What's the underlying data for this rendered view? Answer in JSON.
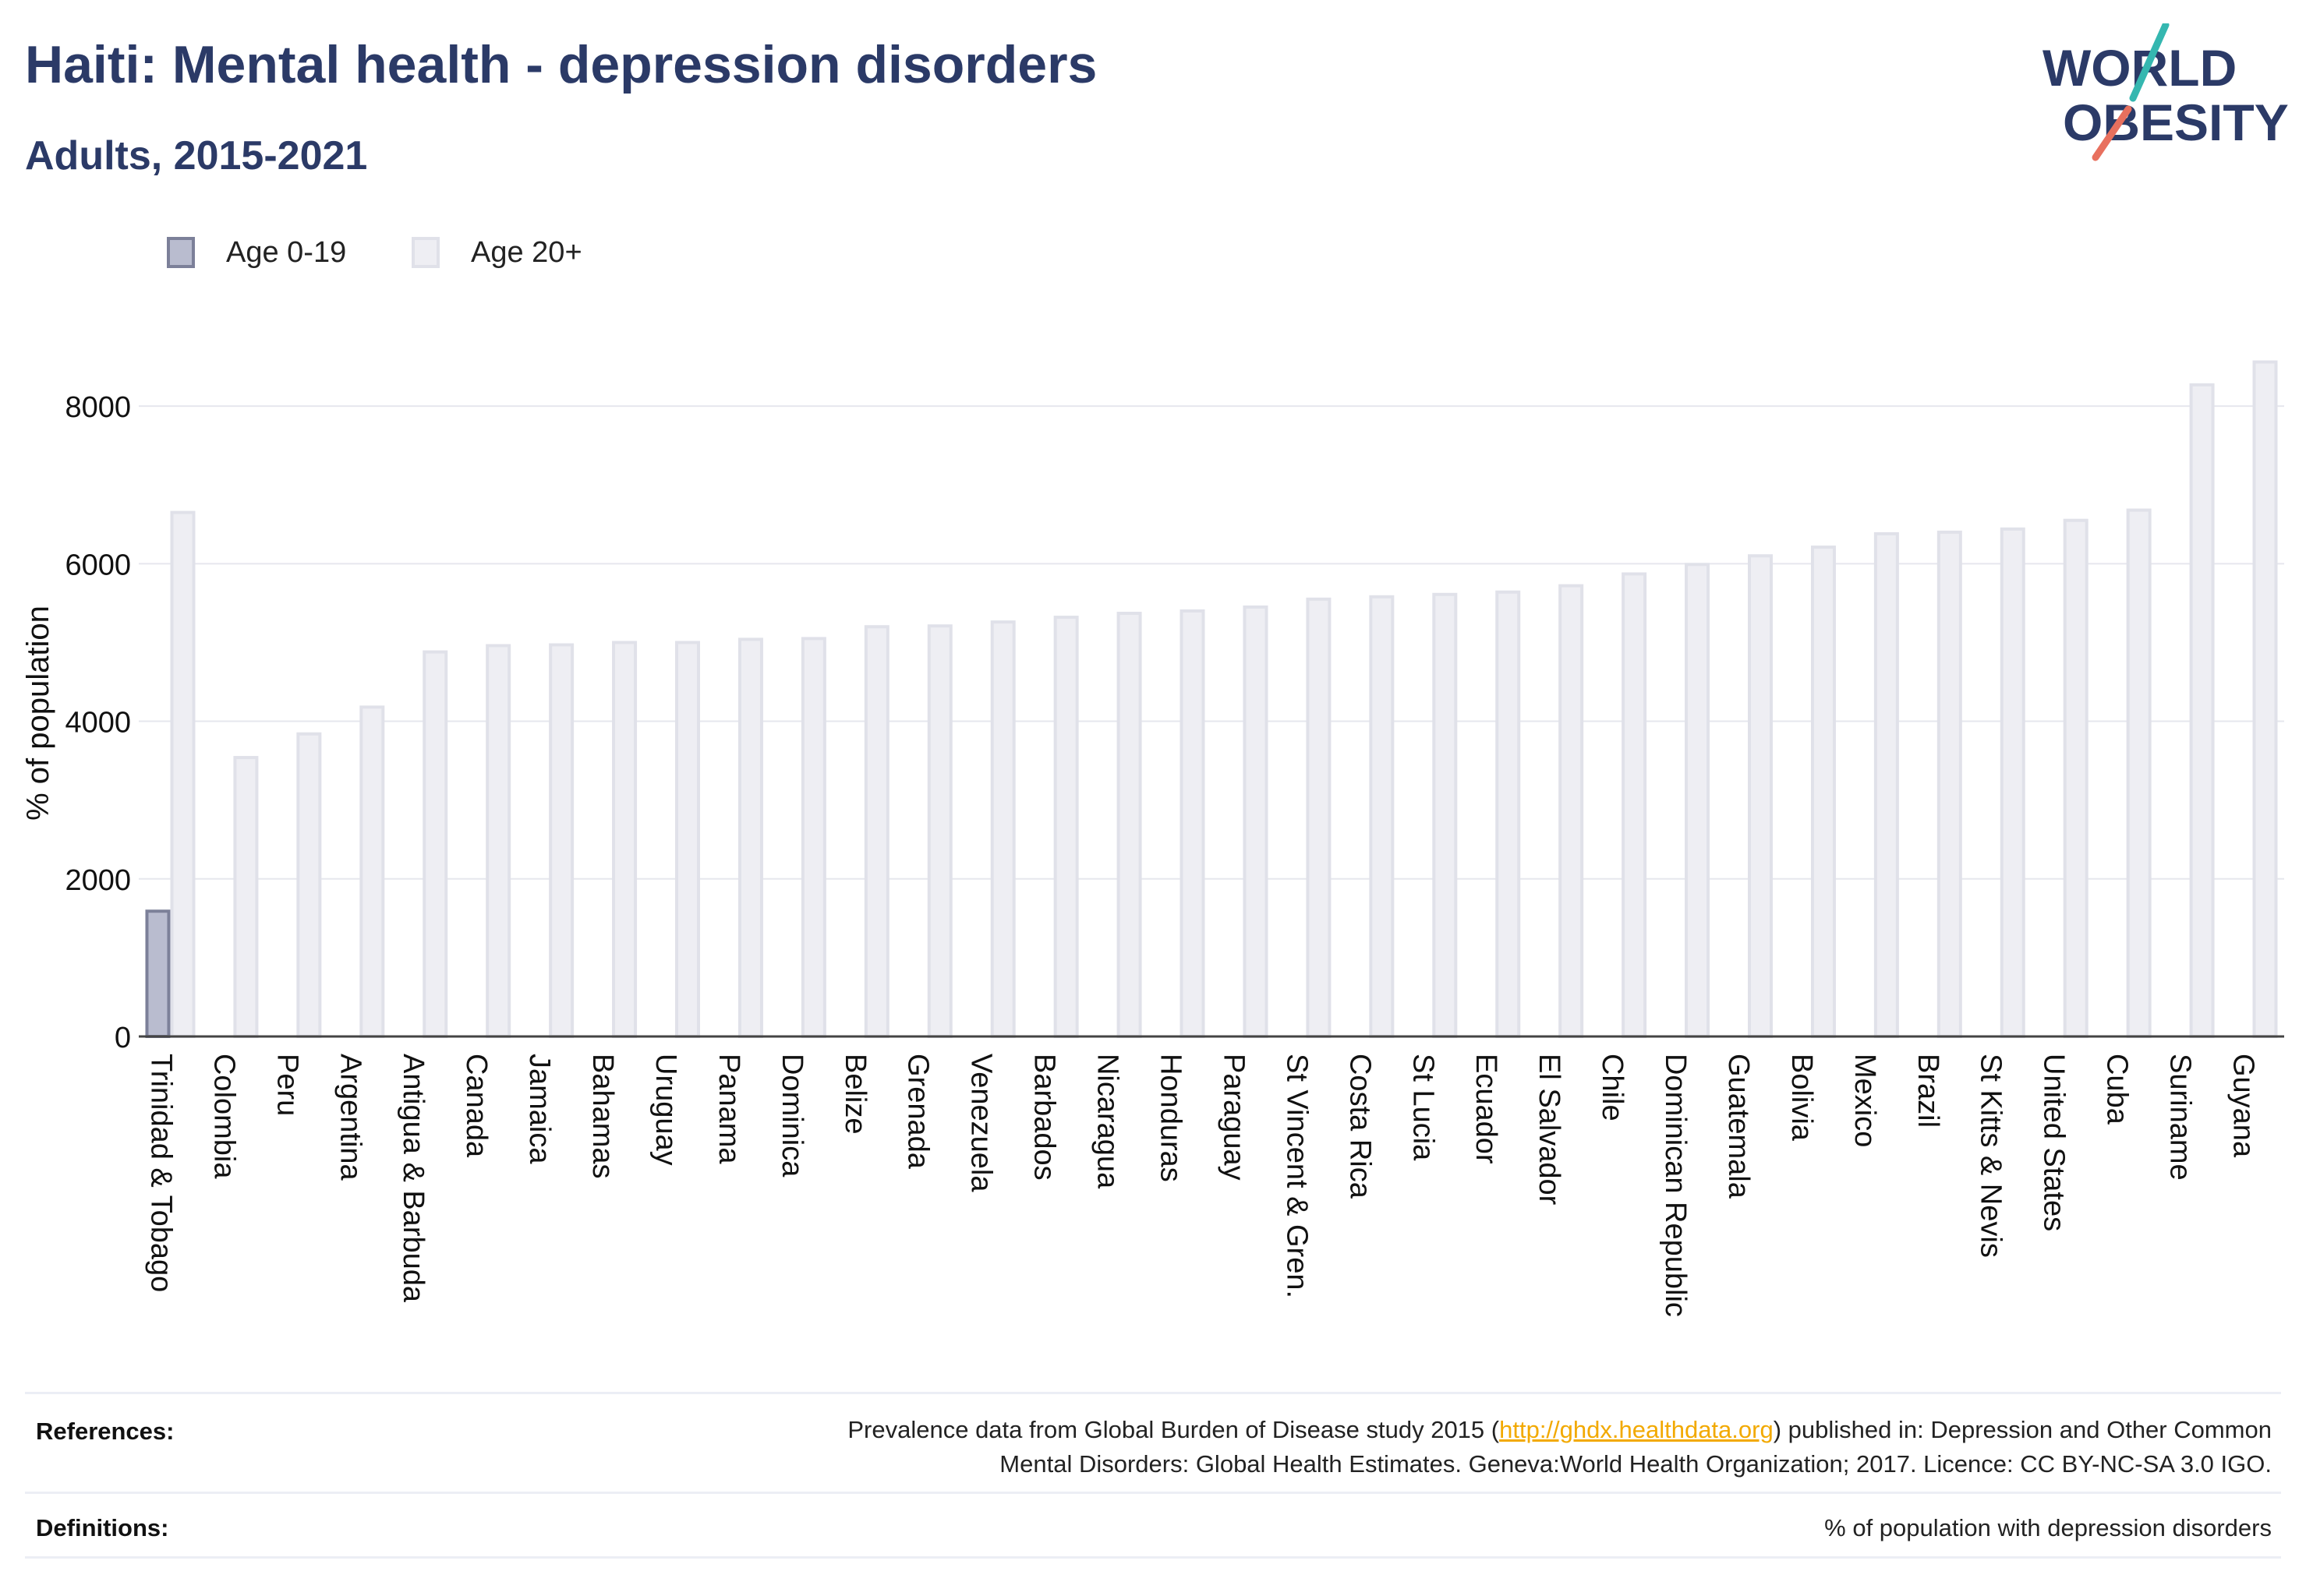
{
  "title": "Haiti: Mental health - depression disorders",
  "subtitle": "Adults, 2015-2021",
  "logo": {
    "line1": "WORLD",
    "line2": "OBESITY",
    "color": "#2b3a67",
    "accent1": "#35b7b0",
    "accent2": "#e8705e"
  },
  "legend": [
    {
      "label": "Age 0-19",
      "fill": "#b9bccf",
      "stroke": "#7c8099"
    },
    {
      "label": "Age 20+",
      "fill": "#eeeef3",
      "stroke": "#e0e1e9"
    }
  ],
  "chart_data": {
    "type": "bar",
    "ylabel": "% of population",
    "xlabel": "",
    "ylim": [
      0,
      9000
    ],
    "yticks": [
      0,
      2000,
      4000,
      6000,
      8000
    ],
    "grid": true,
    "legend_position": "top-left",
    "categories": [
      "Trinidad & Tobago",
      "Colombia",
      "Peru",
      "Argentina",
      "Antigua & Barbuda",
      "Canada",
      "Jamaica",
      "Bahamas",
      "Uruguay",
      "Panama",
      "Dominica",
      "Belize",
      "Grenada",
      "Venezuela",
      "Barbados",
      "Nicaragua",
      "Honduras",
      "Paraguay",
      "St Vincent & Gren.",
      "Costa Rica",
      "St Lucia",
      "Ecuador",
      "El Salvador",
      "Chile",
      "Dominican Republic",
      "Guatemala",
      "Bolivia",
      "Mexico",
      "Brazil",
      "St Kitts & Nevis",
      "United States",
      "Cuba",
      "Suriname",
      "Guyana"
    ],
    "series": [
      {
        "name": "Age 0-19",
        "values": [
          1590,
          null,
          null,
          null,
          null,
          null,
          null,
          null,
          null,
          null,
          null,
          null,
          null,
          null,
          null,
          null,
          null,
          null,
          null,
          null,
          null,
          null,
          null,
          null,
          null,
          null,
          null,
          null,
          null,
          null,
          null,
          null,
          null,
          null
        ]
      },
      {
        "name": "Age 20+",
        "values": [
          6650,
          3540,
          3840,
          4180,
          4880,
          4960,
          4970,
          5000,
          5000,
          5040,
          5050,
          5200,
          5210,
          5260,
          5320,
          5370,
          5400,
          5450,
          5550,
          5580,
          5610,
          5640,
          5720,
          5870,
          5990,
          6100,
          6210,
          6380,
          6400,
          6440,
          6550,
          6680,
          8270,
          8560
        ]
      }
    ]
  },
  "footer": {
    "references_label": "References:",
    "references_pre": "Prevalence data from Global Burden of Disease study 2015 (",
    "references_link": "http://ghdx.healthdata.org",
    "references_post": ") published in: Depression and Other Common",
    "references_line2": "Mental Disorders: Global Health Estimates. Geneva:World Health Organization; 2017. Licence: CC BY-NC-SA 3.0 IGO.",
    "definitions_label": "Definitions:",
    "definitions_text": "% of population with depression disorders"
  }
}
